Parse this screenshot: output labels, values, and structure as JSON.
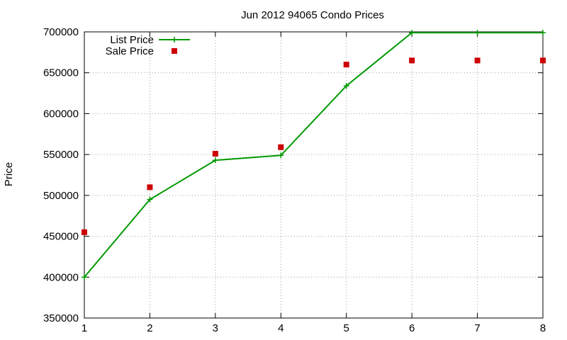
{
  "chart_data": {
    "type": "line",
    "title": "Jun 2012 94065 Condo Prices",
    "xlabel": "",
    "ylabel": "Price",
    "x": [
      1,
      2,
      3,
      4,
      5,
      6,
      7,
      8
    ],
    "xlim": [
      1,
      8
    ],
    "ylim": [
      350000,
      700000
    ],
    "xticks": [
      1,
      2,
      3,
      4,
      5,
      6,
      7,
      8
    ],
    "yticks": [
      350000,
      400000,
      450000,
      500000,
      550000,
      600000,
      650000,
      700000
    ],
    "xtick_labels": [
      "1",
      "2",
      "3",
      "4",
      "5",
      "6",
      "7",
      "8"
    ],
    "ytick_labels": [
      "350000",
      "400000",
      "450000",
      "500000",
      "550000",
      "600000",
      "650000",
      "700000"
    ],
    "grid": true,
    "legend_position": "top-left",
    "series": [
      {
        "name": "List Price",
        "style": "linespoints",
        "marker": "plus",
        "color": "#009900",
        "values": [
          400000,
          495000,
          543000,
          549000,
          634000,
          699000,
          699000,
          699000
        ]
      },
      {
        "name": "Sale Price",
        "style": "points",
        "marker": "square",
        "color": "#cc0000",
        "values": [
          455000,
          510000,
          551000,
          559000,
          660000,
          665000,
          665000,
          665000
        ]
      }
    ]
  }
}
